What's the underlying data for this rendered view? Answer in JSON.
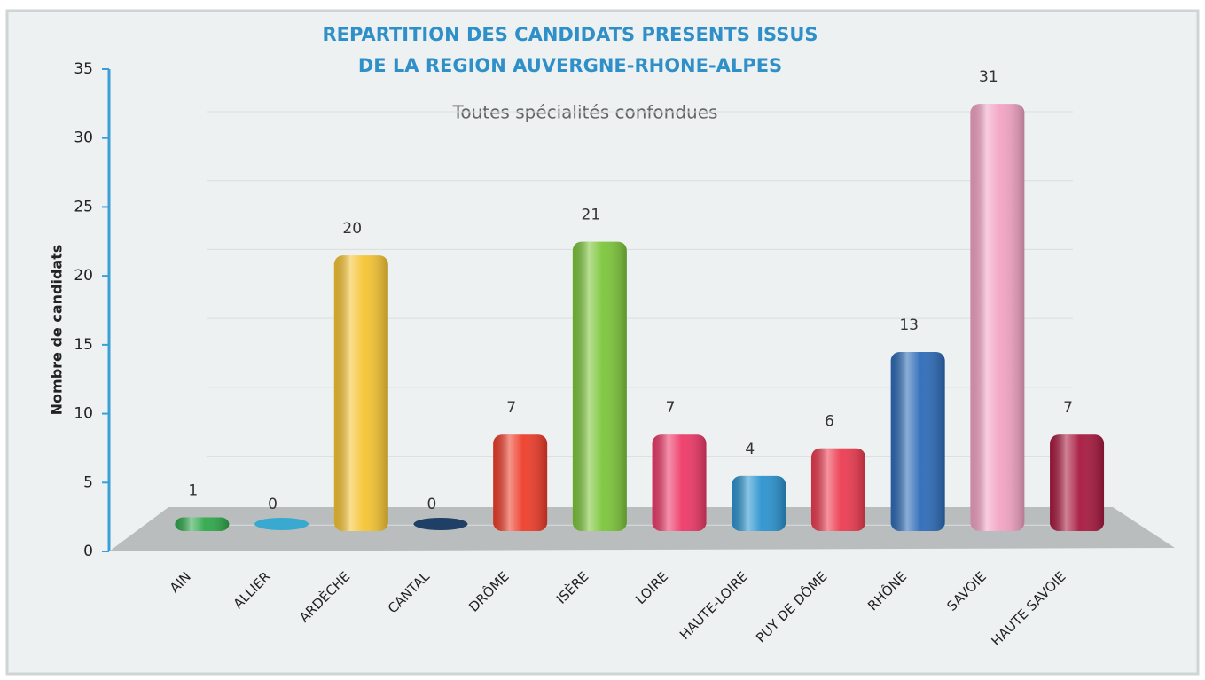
{
  "chart_data": {
    "type": "bar",
    "title": [
      "REPARTITION DES CANDIDATS PRESENTS ISSUS",
      "DE LA REGION AUVERGNE-RHONE-ALPES"
    ],
    "subtitle": "Toutes spécialités confondues",
    "y_label": "Nombre de candidats",
    "categories": [
      "AIN",
      "ALLIER",
      "ARDÈCHE",
      "CANTAL",
      "DRÔME",
      "ISÈRE",
      "LOIRE",
      "HAUTE-LOIRE",
      "PUY DE DÔME",
      "RHÔNE",
      "SAVOIE",
      "HAUTE SAVOIE"
    ],
    "values": [
      1,
      0,
      20,
      0,
      7,
      21,
      7,
      4,
      6,
      13,
      31,
      7
    ],
    "colors": [
      "#2ea84a",
      "#3aa9cf",
      "#f5c433",
      "#1f3f66",
      "#ee3d2a",
      "#7cc63a",
      "#ee3968",
      "#2b93cf",
      "#ec3b50",
      "#2d6bb8",
      "#f2a3c3",
      "#a8193f"
    ],
    "ylim": [
      0,
      35
    ],
    "yticks": [
      0,
      5,
      10,
      15,
      20,
      25,
      30,
      35
    ],
    "grid": true
  }
}
